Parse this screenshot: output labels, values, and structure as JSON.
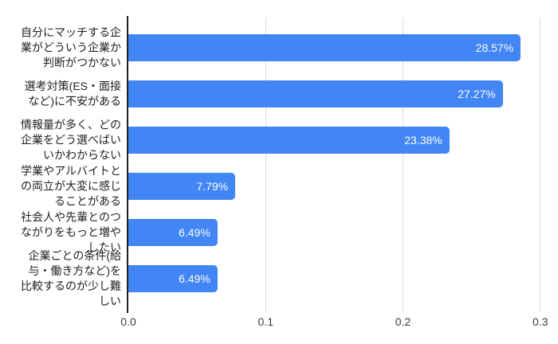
{
  "chart_data": {
    "type": "bar",
    "orientation": "horizontal",
    "title": "",
    "xlabel": "",
    "ylabel": "",
    "xlim": [
      0,
      0.31
    ],
    "grid": "vertical",
    "legend": "none",
    "categories": [
      "自分にマッチする企\n業がどういう企業か\n判断がつかない",
      "選考対策(ES・面接\nなど)に不安がある",
      "情報量が多く、どの\n企業をどう選べばい\nいかわからない",
      "学業やアルバイトと\nの両立が大変に感じ\nることがある",
      "社会人や先輩とのつ\nながりをもっと増や\nしたい",
      "企業ごとの条件(給\n与・働き方など)を\n比較するのが少し難\nしい"
    ],
    "values": [
      0.2857,
      0.2727,
      0.2338,
      0.0779,
      0.0649,
      0.0649
    ],
    "value_labels": [
      "28.57%",
      "27.27%",
      "23.38%",
      "7.79%",
      "6.49%",
      "6.49%"
    ],
    "x_ticks": [
      {
        "value": 0.0,
        "label": "0.0"
      },
      {
        "value": 0.1,
        "label": "0.1"
      },
      {
        "value": 0.2,
        "label": "0.2"
      },
      {
        "value": 0.3,
        "label": "0.3"
      }
    ],
    "colors": {
      "bar": "#4285f4",
      "value_label": "#ffffff",
      "category_label": "#212121",
      "gridline": "#dadada",
      "axis_line": "#212121",
      "tick_label": "#3c3c3c",
      "background": "#ffffff"
    }
  }
}
